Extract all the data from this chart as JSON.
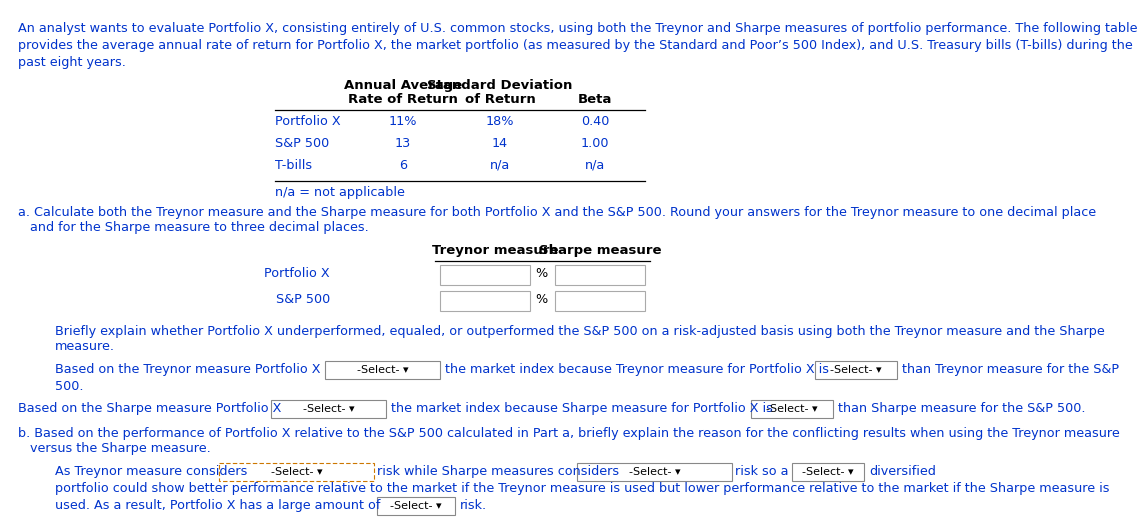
{
  "bg_color": "#ffffff",
  "blue_color": "#0033cc",
  "black_color": "#000000",
  "intro_lines": [
    "An analyst wants to evaluate Portfolio X, consisting entirely of U.S. common stocks, using both the Treynor and Sharpe measures of portfolio performance. The following table",
    "provides the average annual rate of return for Portfolio X, the market portfolio (as measured by the Standard and Poor’s 500 Index), and U.S. Treasury bills (T-bills) during the",
    "past eight years."
  ],
  "t1_col2_h1": "Annual Average",
  "t1_col2_h2": "Rate of Return",
  "t1_col3_h1": "Standard Deviation",
  "t1_col3_h2": "of Return",
  "t1_col4_h": "Beta",
  "t1_rows": [
    [
      "Portfolio X",
      "11%",
      "18%",
      "0.40"
    ],
    [
      "S&P 500",
      "13",
      "14",
      "1.00"
    ],
    [
      "T-bills",
      "6",
      "n/a",
      "n/a"
    ]
  ],
  "na_note": "n/a = not applicable",
  "parta_lines": [
    "a. Calculate both the Treynor measure and the Sharpe measure for both Portfolio X and the S&P 500. Round your answers for the Treynor measure to one decimal place",
    "   and for the Sharpe measure to three decimal places."
  ],
  "t2_col2_h": "Treynor measure",
  "t2_col3_h": "Sharpe measure",
  "t2_rows": [
    [
      "Portfolio X",
      "%"
    ],
    [
      "S&P 500",
      "%"
    ]
  ],
  "briefly_lines": [
    "Briefly explain whether Portfolio X underperformed, equaled, or outperformed the S&P 500 on a risk-adjusted basis using both the Treynor measure and the Sharpe",
    "measure."
  ],
  "treynor_text1": "Based on the Treynor measure Portfolio X",
  "treynor_dd1": "-Select-",
  "treynor_text2": "the market index because Treynor measure for Portfolio X is",
  "treynor_dd2": "-Select- ▾",
  "treynor_text3": "than Treynor measure for the S&P",
  "treynor_text4": "500.",
  "sharpe_text1": "Based on the Sharpe measure Portfolio X",
  "sharpe_dd1": "-Select-",
  "sharpe_text2": "the market index because Sharpe measure for Portfolio X is",
  "sharpe_dd2": "-Select- ▾",
  "sharpe_text3": "than Sharpe measure for the S&P 500.",
  "partb_lines": [
    "b. Based on the performance of Portfolio X relative to the S&P 500 calculated in Part a, briefly explain the reason for the conflicting results when using the Treynor measure",
    "   versus the Sharpe measure."
  ],
  "as_text1": "As Treynor measure considers",
  "as_dd1": "-Select-",
  "as_text2": "risk while Sharpe measures considers",
  "as_dd2": "-Select-",
  "as_text3": "risk so a",
  "as_dd3": "-Select- ▾",
  "as_text4": "diversified",
  "port_line1": "portfolio could show better performance relative to the market if the Treynor measure is used but lower performance relative to the market if the Sharpe measure is",
  "port_line2": "used. As a result, Portfolio X has a large amount of",
  "last_dd": "-Select-",
  "last_text": "risk."
}
